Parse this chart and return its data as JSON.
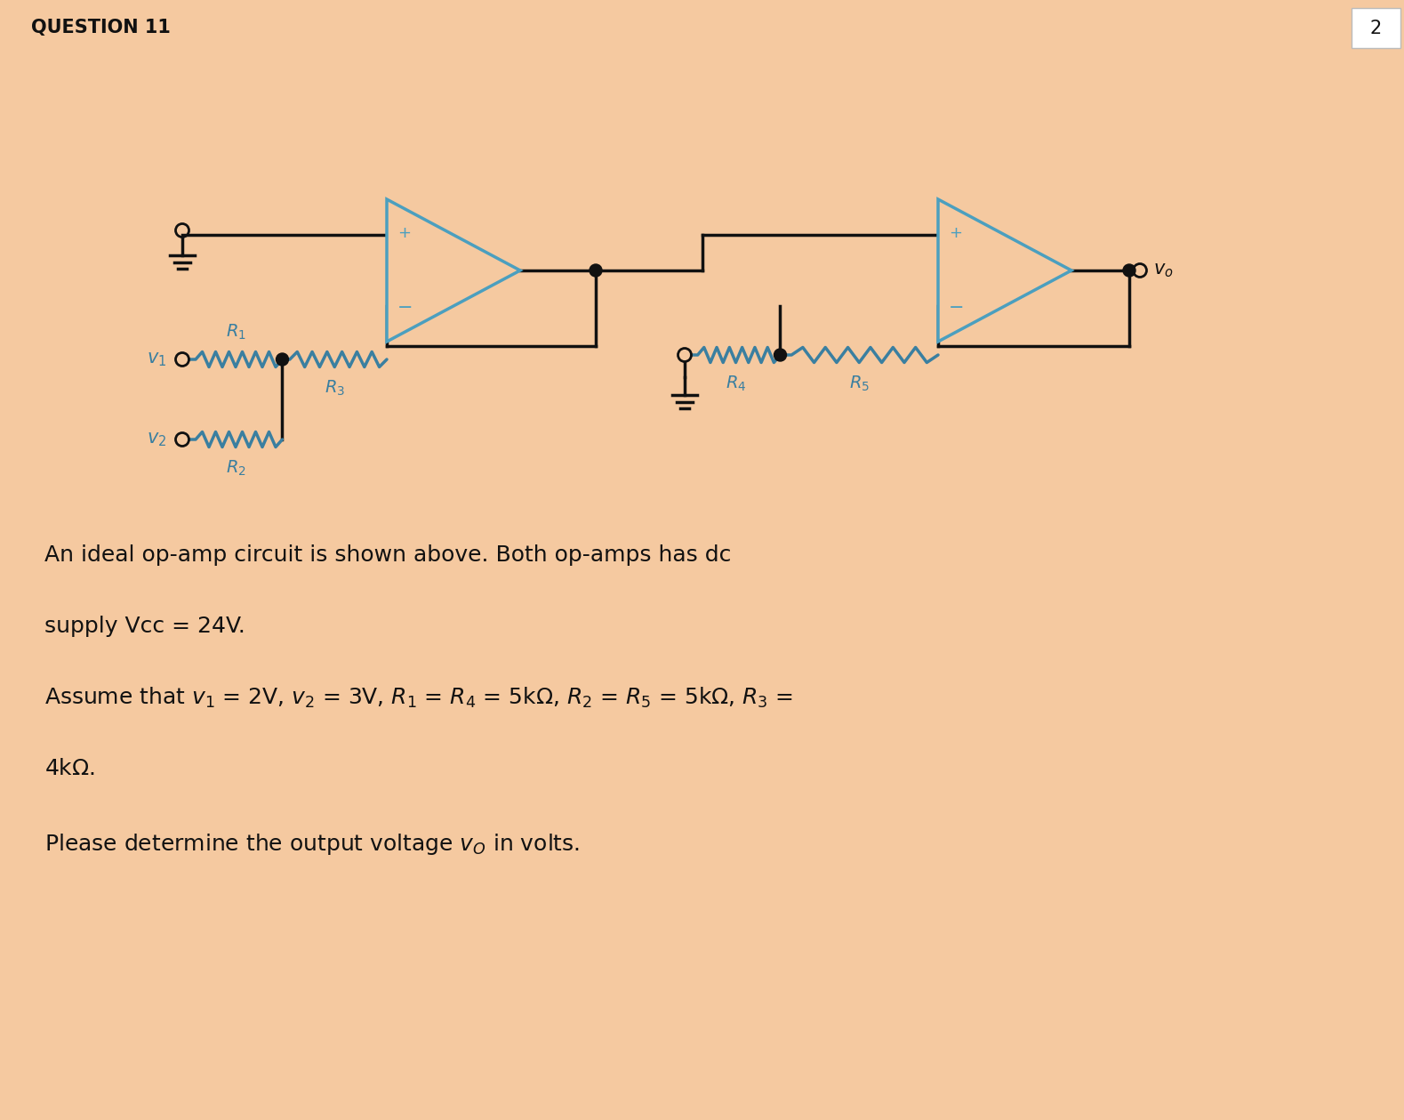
{
  "background_color": "#F5C9A0",
  "title": "QUESTION 11",
  "page_num": "2",
  "title_fontsize": 15,
  "opamp_color": "#4B9FBF",
  "opamp_fill": "#F5C9A0",
  "wire_color": "#111111",
  "resistor_color": "#3A7FA0",
  "label_color": "#111111",
  "circuit_label_color": "#3A7FA0",
  "body_text_color": "#111111",
  "body_fontsize": 18,
  "page_box_color": "#DDDDDD"
}
